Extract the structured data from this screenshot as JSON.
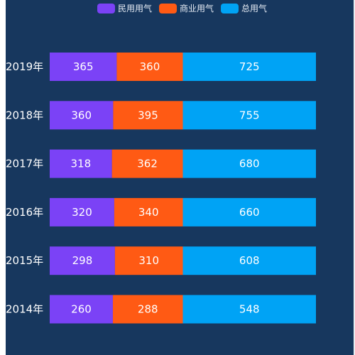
{
  "chart_data": {
    "type": "bar",
    "orientation": "horizontal",
    "stacked": true,
    "categories": [
      "2014年",
      "2015年",
      "2016年",
      "2017年",
      "2018年",
      "2019年"
    ],
    "series": [
      {
        "name": "民用用气",
        "color": "#7b42f6",
        "values": [
          260,
          298,
          320,
          318,
          360,
          365
        ]
      },
      {
        "name": "商业用气",
        "color": "#ff5a14",
        "values": [
          288,
          310,
          340,
          362,
          395,
          360
        ]
      },
      {
        "name": "总用气",
        "color": "#00a3f5",
        "values": [
          548,
          608,
          660,
          680,
          755,
          725
        ]
      }
    ],
    "title": "",
    "xlabel": "",
    "ylabel": "",
    "grid": false,
    "legend_position": "top-center",
    "data_labels": true,
    "background_color": "#17375e"
  }
}
